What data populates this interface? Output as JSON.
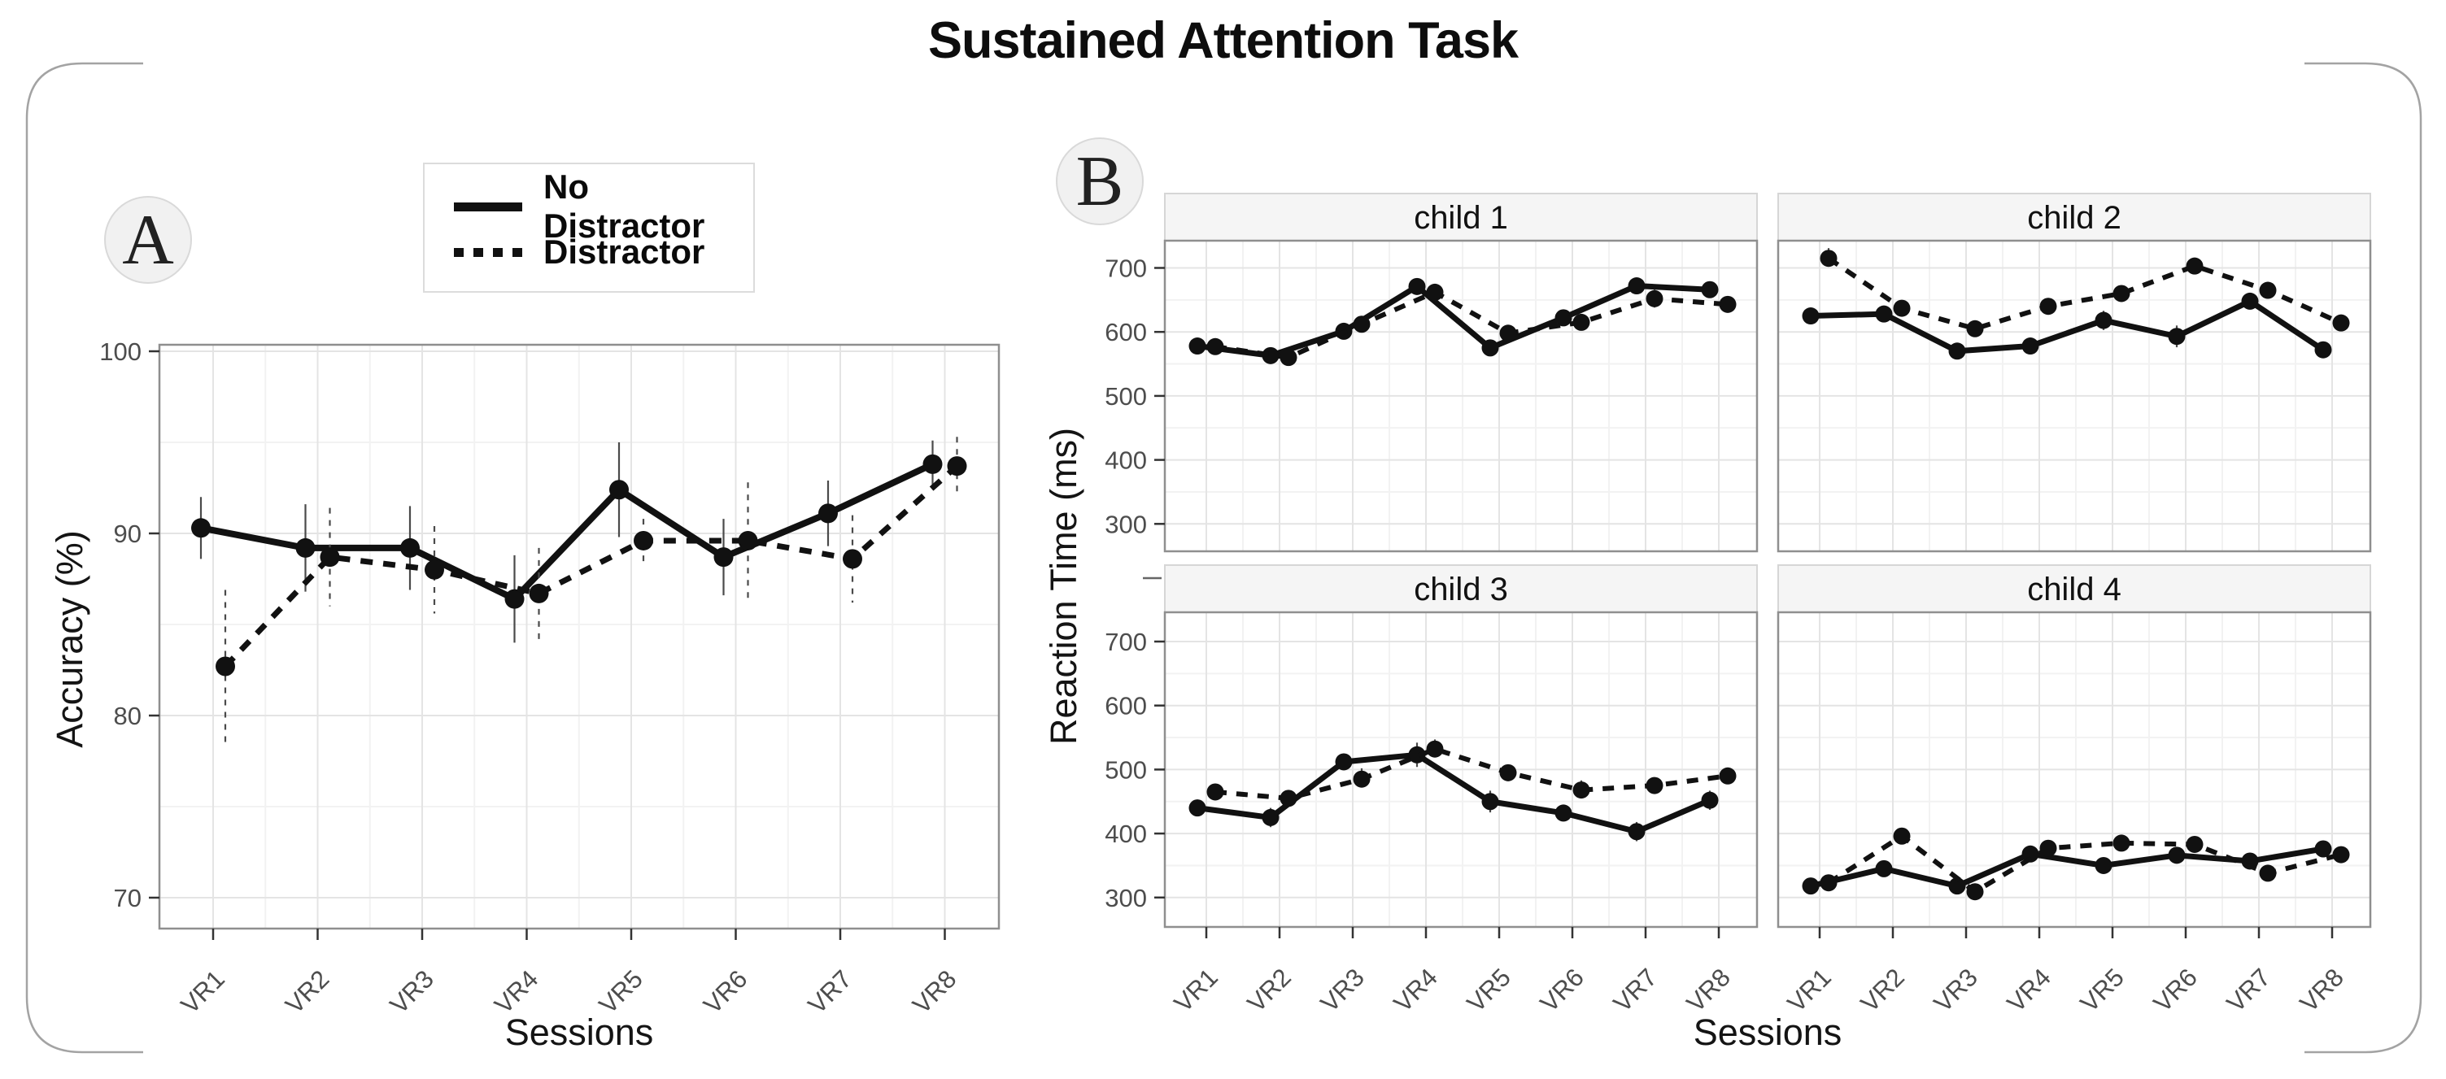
{
  "title": "Sustained Attention Task",
  "panels": {
    "a_label": "A",
    "b_label": "B"
  },
  "legend": {
    "items": [
      {
        "name": "No Distractor",
        "style": "solid"
      },
      {
        "name": "Distractor",
        "style": "dashed"
      }
    ]
  },
  "axes": {
    "a_y": "Accuracy (%)",
    "a_x": "Sessions",
    "b_y": "Reaction Time (ms)",
    "b_x": "Sessions"
  },
  "sessions": [
    "VR1",
    "VR2",
    "VR3",
    "VR4",
    "VR5",
    "VR6",
    "VR7",
    "VR8"
  ],
  "chart_data": [
    {
      "panel": "A",
      "type": "line",
      "title": "",
      "xlabel": "Sessions",
      "ylabel": "Accuracy (%)",
      "categories": [
        "VR1",
        "VR2",
        "VR3",
        "VR4",
        "VR5",
        "VR6",
        "VR7",
        "VR8"
      ],
      "yticks": [
        70,
        80,
        90,
        100
      ],
      "yminor": [
        75,
        85,
        95
      ],
      "ylim": [
        68.3,
        100.4
      ],
      "grid": true,
      "legend_position": "above-plot-left",
      "series": [
        {
          "name": "No Distractor",
          "style": "solid",
          "values": [
            90.3,
            89.2,
            89.2,
            86.4,
            92.4,
            88.7,
            91.1,
            93.8
          ],
          "errors": [
            1.7,
            2.4,
            2.3,
            2.4,
            2.6,
            2.1,
            1.8,
            1.3
          ]
        },
        {
          "name": "Distractor",
          "style": "dashed",
          "values": [
            82.7,
            88.7,
            88.0,
            86.7,
            89.6,
            89.6,
            88.6,
            93.7
          ],
          "errors": [
            4.2,
            2.7,
            2.4,
            2.5,
            1.2,
            3.2,
            2.4,
            1.6
          ]
        }
      ]
    },
    {
      "panel": "B",
      "type": "line",
      "xlabel": "Sessions",
      "ylabel": "Reaction Time (ms)",
      "categories": [
        "VR1",
        "VR2",
        "VR3",
        "VR4",
        "VR5",
        "VR6",
        "VR7",
        "VR8"
      ],
      "yticks": [
        300,
        400,
        500,
        600,
        700
      ],
      "yminor": [
        350,
        450,
        550,
        650
      ],
      "ylim": [
        280,
        760
      ],
      "grid": true,
      "facets": [
        {
          "name": "child 1",
          "series": [
            {
              "name": "No Distractor",
              "style": "solid",
              "values": [
                578,
                563,
                601,
                671,
                575,
                622,
                672,
                666
              ],
              "errors": [
                8,
                9,
                10,
                13,
                11,
                9,
                11,
                9
              ]
            },
            {
              "name": "Distractor",
              "style": "dashed",
              "values": [
                577,
                560,
                612,
                662,
                598,
                615,
                652,
                643
              ],
              "errors": [
                9,
                10,
                10,
                13,
                13,
                9,
                14,
                11
              ]
            }
          ]
        },
        {
          "name": "child 2",
          "series": [
            {
              "name": "No Distractor",
              "style": "solid",
              "values": [
                625,
                628,
                570,
                578,
                618,
                593,
                648,
                572
              ],
              "errors": [
                11,
                12,
                10,
                9,
                15,
                17,
                13,
                11
              ]
            },
            {
              "name": "Distractor",
              "style": "dashed",
              "values": [
                715,
                637,
                605,
                640,
                660,
                703,
                665,
                614
              ],
              "errors": [
                16,
                11,
                10,
                10,
                10,
                11,
                13,
                11
              ]
            }
          ]
        },
        {
          "name": "child 3",
          "series": [
            {
              "name": "No Distractor",
              "style": "solid",
              "values": [
                440,
                425,
                512,
                523,
                450,
                432,
                403,
                452
              ],
              "errors": [
                13,
                15,
                12,
                19,
                17,
                13,
                15,
                15
              ]
            },
            {
              "name": "Distractor",
              "style": "dashed",
              "values": [
                465,
                455,
                485,
                532,
                495,
                468,
                475,
                490
              ],
              "errors": [
                11,
                13,
                17,
                15,
                13,
                15,
                13,
                11
              ]
            }
          ]
        },
        {
          "name": "child 4",
          "series": [
            {
              "name": "No Distractor",
              "style": "solid",
              "values": [
                318,
                345,
                318,
                368,
                350,
                366,
                357,
                376
              ],
              "errors": [
                8,
                8,
                9,
                8,
                8,
                8,
                11,
                8
              ]
            },
            {
              "name": "Distractor",
              "style": "dashed",
              "values": [
                323,
                396,
                309,
                377,
                385,
                383,
                338,
                367
              ],
              "errors": [
                9,
                11,
                13,
                9,
                8,
                9,
                11,
                9
              ]
            }
          ]
        }
      ]
    }
  ]
}
